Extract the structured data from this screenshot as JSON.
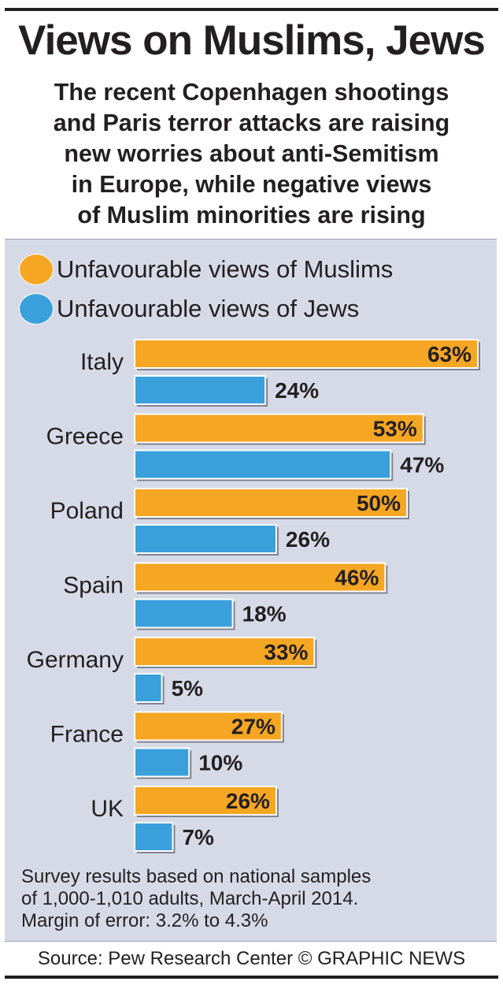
{
  "title": "Views on Muslims, Jews",
  "subtitle_lines": [
    "The recent Copenhagen shootings",
    "and Paris terror attacks are raising",
    "new worries about anti-Semitism",
    "in Europe, while negative views",
    "of Muslim minorities are rising"
  ],
  "legend": [
    {
      "label": "Unfavourable views of Muslims",
      "color": "#f5a623"
    },
    {
      "label": "Unfavourable views of Jews",
      "color": "#3aa0dc"
    }
  ],
  "chart_data": {
    "type": "bar",
    "orientation": "horizontal",
    "categories": [
      "Italy",
      "Greece",
      "Poland",
      "Spain",
      "Germany",
      "France",
      "UK"
    ],
    "series": [
      {
        "name": "Unfavourable views of Muslims",
        "values": [
          63,
          53,
          50,
          46,
          33,
          27,
          26
        ],
        "labels": [
          "63%",
          "53%",
          "50%",
          "46%",
          "33%",
          "27%",
          "26%"
        ],
        "color": "#f5a623"
      },
      {
        "name": "Unfavourable views of Jews",
        "values": [
          24,
          47,
          26,
          18,
          5,
          10,
          7
        ],
        "labels": [
          "24%",
          "47%",
          "26%",
          "18%",
          "5%",
          "10%",
          "7%"
        ],
        "color": "#3aa0dc"
      }
    ],
    "unit": "%",
    "xlim": [
      0,
      63
    ],
    "legend_position": "top-left",
    "grid": false
  },
  "footnote_lines": [
    "Survey results based on national samples",
    "of 1,000-1,010 adults, March-April 2014.",
    "Margin of error: 3.2% to 4.3%"
  ],
  "source": "Source: Pew Research Center © GRAPHIC NEWS"
}
